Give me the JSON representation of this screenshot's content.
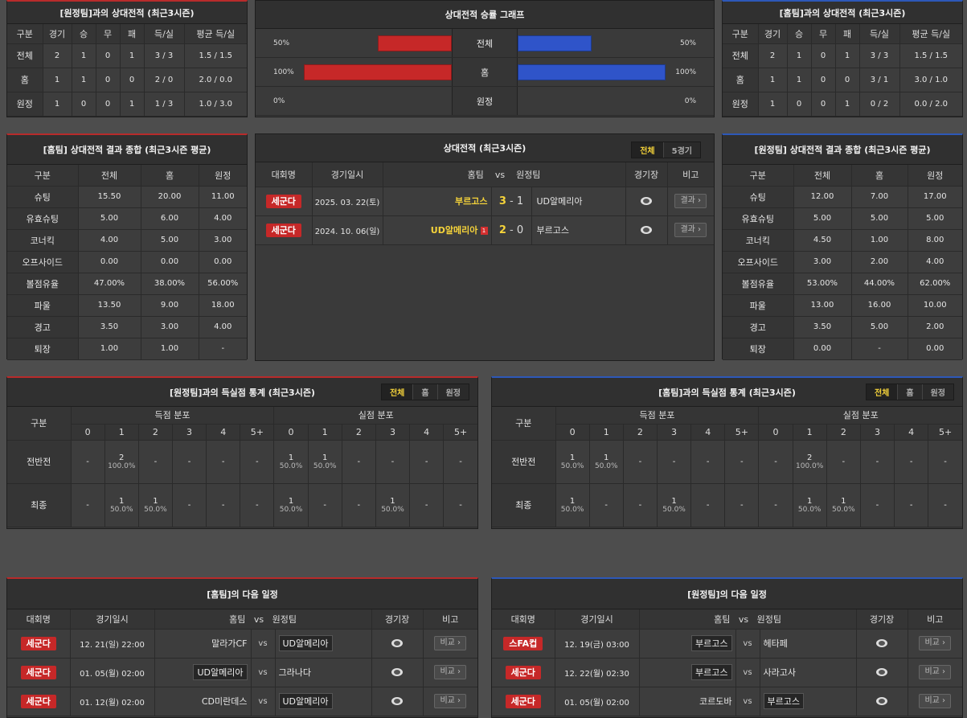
{
  "h2h_left": {
    "title": "[원정팀]과의 상대전적 (최근3시즌)",
    "headers": [
      "구분",
      "경기",
      "승",
      "무",
      "패",
      "득/실",
      "평균 득/실"
    ],
    "rows": [
      [
        "전체",
        "2",
        "1",
        "0",
        "1",
        "3 / 3",
        "1.5 / 1.5"
      ],
      [
        "홈",
        "1",
        "1",
        "0",
        "0",
        "2 / 0",
        "2.0 / 0.0"
      ],
      [
        "원정",
        "1",
        "0",
        "0",
        "1",
        "1 / 3",
        "1.0 / 3.0"
      ]
    ]
  },
  "graph": {
    "title": "상대전적 승률 그래프",
    "rows": [
      {
        "label": "전체",
        "left_pct": "50%",
        "right_pct": "50%",
        "left_value": 50,
        "right_value": 50
      },
      {
        "label": "홈",
        "left_pct": "100%",
        "right_pct": "100%",
        "left_value": 100,
        "right_value": 100
      },
      {
        "label": "원정",
        "left_pct": "0%",
        "right_pct": "0%",
        "left_value": 0,
        "right_value": 0
      }
    ],
    "colors": {
      "home": "#c62828",
      "away": "#2f54c9"
    }
  },
  "h2h_right": {
    "title": "[홈팀]과의 상대전적 (최근3시즌)",
    "headers": [
      "구분",
      "경기",
      "승",
      "무",
      "패",
      "득/실",
      "평균 득/실"
    ],
    "rows": [
      [
        "전체",
        "2",
        "1",
        "0",
        "1",
        "3 / 3",
        "1.5 / 1.5"
      ],
      [
        "홈",
        "1",
        "1",
        "0",
        "0",
        "3 / 1",
        "3.0 / 1.0"
      ],
      [
        "원정",
        "1",
        "0",
        "0",
        "1",
        "0 / 2",
        "0.0 / 2.0"
      ]
    ]
  },
  "home_summary": {
    "title": "[홈팀] 상대전적 결과 종합 (최근3시즌 평균)",
    "headers": [
      "구분",
      "전체",
      "홈",
      "원정"
    ],
    "rows": [
      [
        "슈팅",
        "15.50",
        "20.00",
        "11.00"
      ],
      [
        "유효슈팅",
        "5.00",
        "6.00",
        "4.00"
      ],
      [
        "코너킥",
        "4.00",
        "5.00",
        "3.00"
      ],
      [
        "오프사이드",
        "0.00",
        "0.00",
        "0.00"
      ],
      [
        "볼점유율",
        "47.00%",
        "38.00%",
        "56.00%"
      ],
      [
        "파울",
        "13.50",
        "9.00",
        "18.00"
      ],
      [
        "경고",
        "3.50",
        "3.00",
        "4.00"
      ],
      [
        "퇴장",
        "1.00",
        "1.00",
        "-"
      ]
    ]
  },
  "matches": {
    "title": "상대전적 (최근3시즌)",
    "tabs": [
      "전체",
      "5경기"
    ],
    "headers": {
      "league": "대회명",
      "date": "경기일시",
      "home": "홈팀",
      "vs": "vs",
      "away": "원정팀",
      "stadium": "경기장",
      "note": "비고"
    },
    "rows": [
      {
        "league": "세군다",
        "date": "2025. 03. 22(토)",
        "home": "부르고스",
        "home_score": "3",
        "sep": "-",
        "away_score": "1",
        "away": "UD알메리아",
        "result": "결과 ›",
        "redcard": ""
      },
      {
        "league": "세군다",
        "date": "2024. 10. 06(일)",
        "home": "UD알메리아",
        "home_score": "2",
        "sep": "-",
        "away_score": "0",
        "away": "부르고스",
        "result": "결과 ›",
        "redcard": "1"
      }
    ]
  },
  "away_summary": {
    "title": "[원정팀] 상대전적 결과 종합 (최근3시즌 평균)",
    "headers": [
      "구분",
      "전체",
      "홈",
      "원정"
    ],
    "rows": [
      [
        "슈팅",
        "12.00",
        "7.00",
        "17.00"
      ],
      [
        "유효슈팅",
        "5.00",
        "5.00",
        "5.00"
      ],
      [
        "코너킥",
        "4.50",
        "1.00",
        "8.00"
      ],
      [
        "오프사이드",
        "3.00",
        "2.00",
        "4.00"
      ],
      [
        "볼점유율",
        "53.00%",
        "44.00%",
        "62.00%"
      ],
      [
        "파울",
        "13.00",
        "16.00",
        "10.00"
      ],
      [
        "경고",
        "3.50",
        "5.00",
        "2.00"
      ],
      [
        "퇴장",
        "0.00",
        "-",
        "0.00"
      ]
    ]
  },
  "goals_left": {
    "title": "[원정팀]과의 득실점 통계 (최근3시즌)",
    "tabs": [
      "전체",
      "홈",
      "원정"
    ],
    "h_label": "구분",
    "h_scored": "득점 분포",
    "h_conceded": "실점 분포",
    "buckets": [
      "0",
      "1",
      "2",
      "3",
      "4",
      "5+"
    ],
    "rows": [
      {
        "label": "전반전",
        "cells": [
          [
            "-",
            ""
          ],
          [
            "2",
            "100.0%"
          ],
          [
            "-",
            ""
          ],
          [
            "-",
            ""
          ],
          [
            "-",
            ""
          ],
          [
            "-",
            ""
          ],
          [
            "1",
            "50.0%"
          ],
          [
            "1",
            "50.0%"
          ],
          [
            "-",
            ""
          ],
          [
            "-",
            ""
          ],
          [
            "-",
            ""
          ],
          [
            "-",
            ""
          ]
        ]
      },
      {
        "label": "최종",
        "cells": [
          [
            "-",
            ""
          ],
          [
            "1",
            "50.0%"
          ],
          [
            "1",
            "50.0%"
          ],
          [
            "-",
            ""
          ],
          [
            "-",
            ""
          ],
          [
            "-",
            ""
          ],
          [
            "1",
            "50.0%"
          ],
          [
            "-",
            ""
          ],
          [
            "-",
            ""
          ],
          [
            "1",
            "50.0%"
          ],
          [
            "-",
            ""
          ],
          [
            "-",
            ""
          ]
        ]
      }
    ]
  },
  "goals_right": {
    "title": "[홈팀]과의 득실점 통계 (최근3시즌)",
    "tabs": [
      "전체",
      "홈",
      "원정"
    ],
    "h_label": "구분",
    "h_scored": "득점 분포",
    "h_conceded": "실점 분포",
    "buckets": [
      "0",
      "1",
      "2",
      "3",
      "4",
      "5+"
    ],
    "rows": [
      {
        "label": "전반전",
        "cells": [
          [
            "1",
            "50.0%"
          ],
          [
            "1",
            "50.0%"
          ],
          [
            "-",
            ""
          ],
          [
            "-",
            ""
          ],
          [
            "-",
            ""
          ],
          [
            "-",
            ""
          ],
          [
            "-",
            ""
          ],
          [
            "2",
            "100.0%"
          ],
          [
            "-",
            ""
          ],
          [
            "-",
            ""
          ],
          [
            "-",
            ""
          ],
          [
            "-",
            ""
          ]
        ]
      },
      {
        "label": "최종",
        "cells": [
          [
            "1",
            "50.0%"
          ],
          [
            "-",
            ""
          ],
          [
            "-",
            ""
          ],
          [
            "1",
            "50.0%"
          ],
          [
            "-",
            ""
          ],
          [
            "-",
            ""
          ],
          [
            "-",
            ""
          ],
          [
            "1",
            "50.0%"
          ],
          [
            "1",
            "50.0%"
          ],
          [
            "-",
            ""
          ],
          [
            "-",
            ""
          ],
          [
            "-",
            ""
          ]
        ]
      }
    ]
  },
  "next_home": {
    "title": "[홈팀]의 다음 일정",
    "headers": {
      "league": "대회명",
      "date": "경기일시",
      "home": "홈팀",
      "vs": "vs",
      "away": "원정팀",
      "stadium": "경기장",
      "note": "비고"
    },
    "rows": [
      {
        "league": "세군다",
        "date": "12. 21(일) 22:00",
        "home": "말라가CF",
        "vs": "vs",
        "away": "UD알메리아",
        "boxed": "away",
        "note": "비교 ›"
      },
      {
        "league": "세군다",
        "date": "01. 05(월) 02:00",
        "home": "UD알메리아",
        "vs": "vs",
        "away": "그라나다",
        "boxed": "home",
        "note": "비교 ›"
      },
      {
        "league": "세군다",
        "date": "01. 12(월) 02:00",
        "home": "CD미란데스",
        "vs": "vs",
        "away": "UD알메리아",
        "boxed": "away",
        "note": "비교 ›"
      }
    ]
  },
  "next_away": {
    "title": "[원정팀]의 다음 일정",
    "headers": {
      "league": "대회명",
      "date": "경기일시",
      "home": "홈팀",
      "vs": "vs",
      "away": "원정팀",
      "stadium": "경기장",
      "note": "비고"
    },
    "rows": [
      {
        "league": "스FA컵",
        "date": "12. 19(금) 03:00",
        "home": "부르고스",
        "vs": "vs",
        "away": "헤타페",
        "boxed": "home",
        "note": "비교 ›"
      },
      {
        "league": "세군다",
        "date": "12. 22(월) 02:30",
        "home": "부르고스",
        "vs": "vs",
        "away": "사라고사",
        "boxed": "home",
        "note": "비교 ›"
      },
      {
        "league": "세군다",
        "date": "01. 05(월) 02:00",
        "home": "코르도바",
        "vs": "vs",
        "away": "부르고스",
        "boxed": "away",
        "note": "비교 ›"
      }
    ]
  }
}
